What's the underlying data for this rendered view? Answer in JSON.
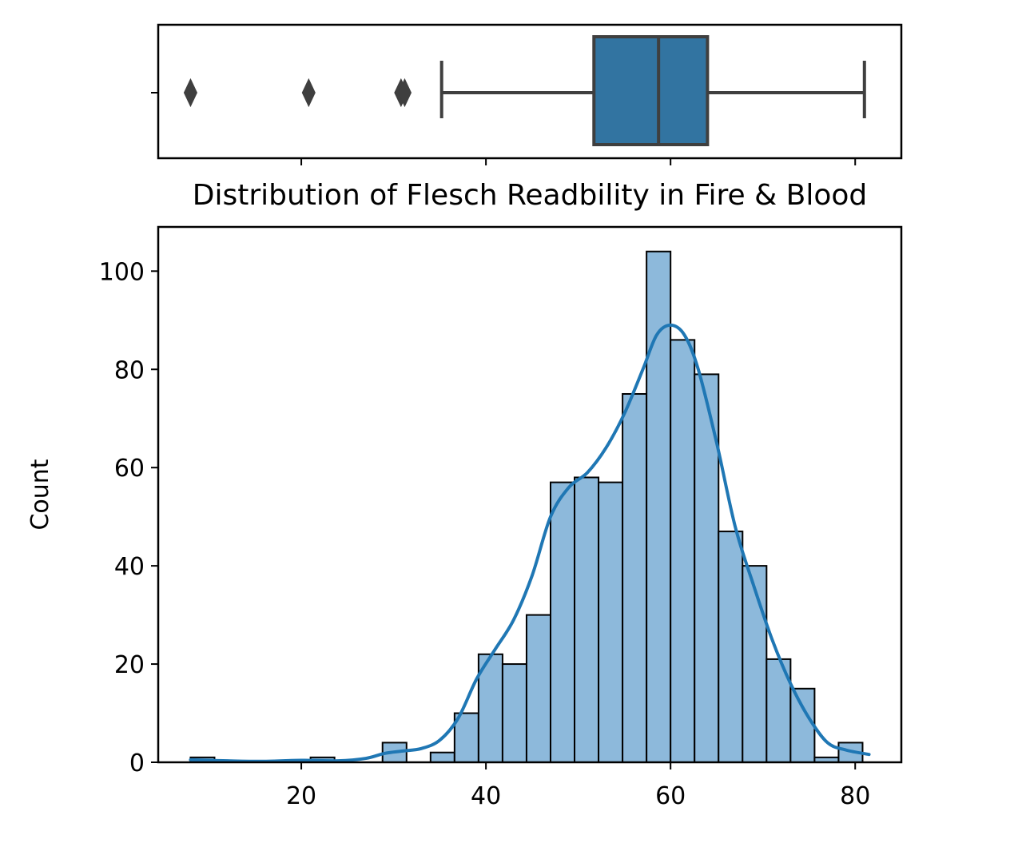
{
  "chart_data": [
    {
      "type": "box",
      "xlim": [
        4.5,
        85
      ],
      "whisker_low": 35.2,
      "q1": 51.7,
      "median": 58.7,
      "q3": 64.0,
      "whisker_high": 81.0,
      "outliers": [
        8.0,
        20.8,
        30.8,
        31.2
      ],
      "box_color": "#3274a1",
      "line_color": "#3f3f3f"
    },
    {
      "type": "histogram",
      "title": "Distribution of Flesch Readbility in Fire & Blood",
      "xlabel": "",
      "ylabel": "Count",
      "xlim": [
        4.5,
        85
      ],
      "ylim": [
        0,
        109
      ],
      "x_ticks": [
        20,
        40,
        60,
        80
      ],
      "y_ticks": [
        0,
        20,
        40,
        60,
        80,
        100
      ],
      "bin_start": 8.0,
      "bin_width": 2.6,
      "counts": [
        1,
        0,
        0,
        0,
        0,
        1,
        0,
        0,
        4,
        0,
        2,
        10,
        22,
        20,
        30,
        57,
        58,
        57,
        75,
        104,
        86,
        79,
        47,
        40,
        21,
        15,
        1,
        4
      ],
      "bar_color": "#8db9db",
      "edge_color": "#000000",
      "kde": {
        "color": "#1f77b4",
        "x": [
          8,
          12,
          16,
          20,
          24,
          27,
          29,
          31,
          33,
          35,
          37,
          39,
          41,
          43,
          45,
          47,
          49,
          51,
          53,
          55,
          57,
          58.5,
          60,
          61.5,
          63,
          65,
          67,
          69,
          71,
          73,
          75,
          77,
          79,
          81.5
        ],
        "y": [
          0.5,
          0.3,
          0.2,
          0.4,
          0.3,
          0.8,
          1.8,
          2.3,
          2.8,
          4.5,
          9,
          17,
          23,
          29,
          38,
          50,
          56,
          59,
          64,
          71,
          80,
          87,
          89,
          87,
          80,
          65,
          48,
          36,
          25,
          16,
          9,
          4,
          2.5,
          1.6
        ]
      }
    }
  ]
}
